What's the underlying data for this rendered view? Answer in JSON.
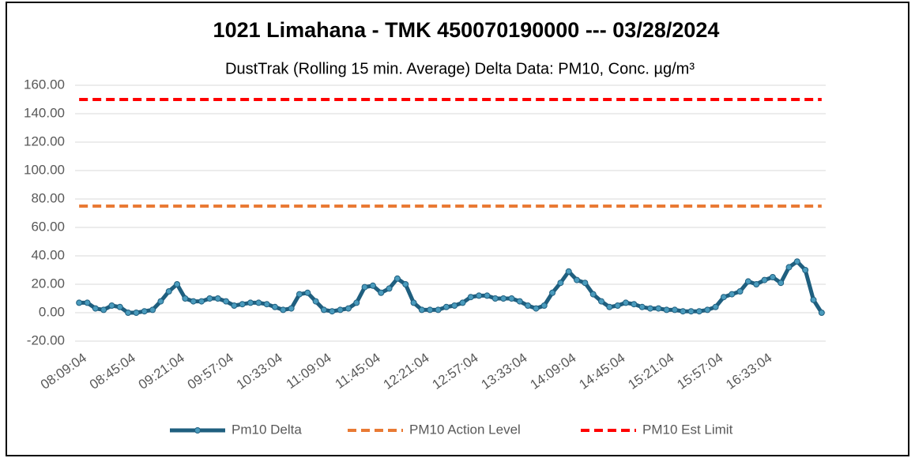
{
  "chart_data": {
    "type": "line",
    "title": "1021 Limahana  - TMK 450070190000 --- 03/28/2024",
    "subtitle": "DustTrak (Rolling 15 min. Average) Delta Data: PM10, Conc. µg/m³",
    "categories": [
      "08:09:04",
      null,
      null,
      null,
      null,
      null,
      "08:45:04",
      null,
      null,
      null,
      null,
      null,
      "09:21:04",
      null,
      null,
      null,
      null,
      null,
      "09:57:04",
      null,
      null,
      null,
      null,
      null,
      "10:33:04",
      null,
      null,
      null,
      null,
      null,
      "11:09:04",
      null,
      null,
      null,
      null,
      null,
      "11:45:04",
      null,
      null,
      null,
      null,
      null,
      "12:21:04",
      null,
      null,
      null,
      null,
      null,
      "12:57:04",
      null,
      null,
      null,
      null,
      null,
      "13:33:04",
      null,
      null,
      null,
      null,
      null,
      "14:09:04",
      null,
      null,
      null,
      null,
      null,
      "14:45:04",
      null,
      null,
      null,
      null,
      null,
      "15:21:04",
      null,
      null,
      null,
      null,
      null,
      "15:57:04",
      null,
      null,
      null,
      null,
      null,
      "16:33:04",
      null,
      null,
      null,
      null,
      null,
      null,
      null
    ],
    "series": [
      {
        "name": "Pm10 Delta",
        "color": "#1f5f7f",
        "marker_color": "#4a9bbd",
        "values": [
          7,
          7,
          3,
          2,
          5,
          4,
          0,
          0,
          1,
          2,
          8,
          15,
          20,
          10,
          8,
          8,
          10,
          10,
          8,
          5,
          6,
          7,
          7,
          6,
          4,
          2,
          3,
          13,
          14,
          8,
          2,
          1,
          2,
          3,
          7,
          18,
          19,
          14,
          17,
          24,
          20,
          7,
          2,
          2,
          2,
          4,
          5,
          7,
          11,
          12,
          12,
          10,
          10,
          10,
          8,
          5,
          3,
          5,
          14,
          21,
          29,
          23,
          21,
          13,
          8,
          4,
          5,
          7,
          6,
          4,
          3,
          3,
          2,
          2,
          1,
          1,
          1,
          2,
          4,
          11,
          13,
          15,
          22,
          20,
          23,
          25,
          21,
          32,
          36,
          30,
          9,
          0
        ]
      },
      {
        "name": "PM10 Action Level",
        "color": "#e97a34",
        "dashed": true,
        "values": [
          75,
          75,
          75,
          75,
          75,
          75,
          75,
          75,
          75,
          75,
          75,
          75,
          75,
          75,
          75,
          75,
          75,
          75,
          75,
          75,
          75,
          75,
          75,
          75,
          75,
          75,
          75,
          75,
          75,
          75,
          75,
          75,
          75,
          75,
          75,
          75,
          75,
          75,
          75,
          75,
          75,
          75,
          75,
          75,
          75,
          75,
          75,
          75,
          75,
          75,
          75,
          75,
          75,
          75,
          75,
          75,
          75,
          75,
          75,
          75,
          75,
          75,
          75,
          75,
          75,
          75,
          75,
          75,
          75,
          75,
          75,
          75,
          75,
          75,
          75,
          75,
          75,
          75,
          75,
          75,
          75,
          75,
          75,
          75,
          75,
          75,
          75,
          75,
          75,
          75,
          75,
          75
        ]
      },
      {
        "name": "PM10 Est Limit",
        "color": "#ff0000",
        "dashed": true,
        "values": [
          150,
          150,
          150,
          150,
          150,
          150,
          150,
          150,
          150,
          150,
          150,
          150,
          150,
          150,
          150,
          150,
          150,
          150,
          150,
          150,
          150,
          150,
          150,
          150,
          150,
          150,
          150,
          150,
          150,
          150,
          150,
          150,
          150,
          150,
          150,
          150,
          150,
          150,
          150,
          150,
          150,
          150,
          150,
          150,
          150,
          150,
          150,
          150,
          150,
          150,
          150,
          150,
          150,
          150,
          150,
          150,
          150,
          150,
          150,
          150,
          150,
          150,
          150,
          150,
          150,
          150,
          150,
          150,
          150,
          150,
          150,
          150,
          150,
          150,
          150,
          150,
          150,
          150,
          150,
          150,
          150,
          150,
          150,
          150,
          150,
          150,
          150,
          150,
          150,
          150,
          150,
          150
        ]
      }
    ],
    "ylim": [
      -20,
      160
    ],
    "yticks": [
      {
        "value": -20,
        "label": "-20.00"
      },
      {
        "value": 0,
        "label": "0.00"
      },
      {
        "value": 20,
        "label": "20.00"
      },
      {
        "value": 40,
        "label": "40.00"
      },
      {
        "value": 60,
        "label": "60.00"
      },
      {
        "value": 80,
        "label": "80.00"
      },
      {
        "value": 100,
        "label": "100.00"
      },
      {
        "value": 120,
        "label": "120.00"
      },
      {
        "value": 140,
        "label": "140.00"
      },
      {
        "value": 160,
        "label": "160.00"
      }
    ],
    "grid": true,
    "legend": "bottom"
  }
}
